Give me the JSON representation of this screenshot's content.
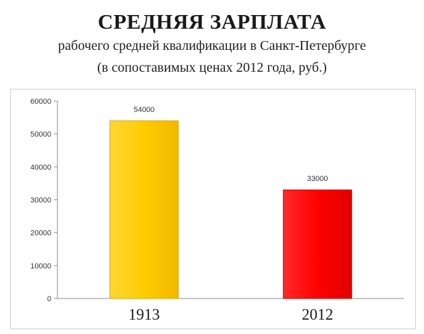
{
  "header": {
    "title": "СРЕДНЯЯ ЗАРПЛАТА",
    "subtitle_line1": "рабочего средней квалификации в Санкт-Петербурге",
    "subtitle_line2": "(в сопоставимых ценах 2012 года, руб.)"
  },
  "chart_data": {
    "type": "bar",
    "title": "",
    "xlabel": "",
    "ylabel": "",
    "categories": [
      "1913",
      "2012"
    ],
    "values": [
      54000,
      33000
    ],
    "data_labels": [
      "54000",
      "33000"
    ],
    "ylim": [
      0,
      60000
    ],
    "yticks": [
      0,
      10000,
      20000,
      30000,
      40000,
      50000,
      60000
    ],
    "grid": false,
    "legend": "none",
    "bar_colors": [
      "#FFCC00",
      "#FF0000"
    ],
    "bar_edge_colors": [
      "#D9A300",
      "#C00000"
    ]
  }
}
